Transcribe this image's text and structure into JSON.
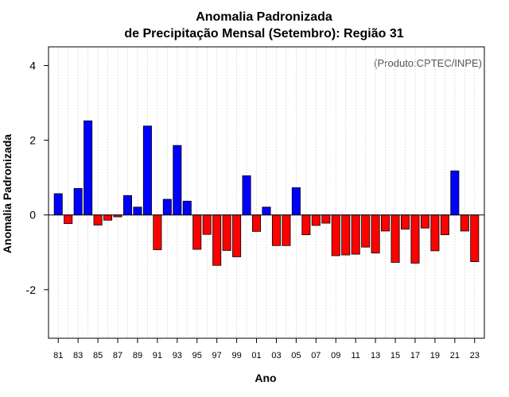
{
  "chart_data": {
    "type": "bar",
    "title": "Anomalia Padronizada",
    "subtitle": "de Precipitação Mensal (Setembro): Região 31",
    "xlabel": "Ano",
    "ylabel": "Anomalia Padronizada",
    "annotation": "(Produto:CPTEC/INPE)",
    "ylim": [
      -3.3,
      4.5
    ],
    "yticks": [
      -2,
      0,
      2,
      4
    ],
    "yticklabels": [
      "-2",
      "0",
      "2",
      "4"
    ],
    "grid": "vertical dotted",
    "colors": {
      "positive": "#0000ff",
      "negative": "#ff0000"
    },
    "tick_labels": [
      "81",
      "83",
      "85",
      "87",
      "89",
      "91",
      "93",
      "95",
      "97",
      "99",
      "01",
      "03",
      "05",
      "07",
      "09",
      "11",
      "13",
      "15",
      "17",
      "19",
      "21",
      "23"
    ],
    "categories": [
      "1981",
      "1982",
      "1983",
      "1984",
      "1985",
      "1986",
      "1987",
      "1988",
      "1989",
      "1990",
      "1991",
      "1992",
      "1993",
      "1994",
      "1995",
      "1996",
      "1997",
      "1998",
      "1999",
      "2000",
      "2001",
      "2002",
      "2003",
      "2004",
      "2005",
      "2006",
      "2007",
      "2008",
      "2009",
      "2010",
      "2011",
      "2012",
      "2013",
      "2014",
      "2015",
      "2016",
      "2017",
      "2018",
      "2019",
      "2020",
      "2021",
      "2022",
      "2023"
    ],
    "values": [
      0.57,
      -0.23,
      0.71,
      2.52,
      -0.27,
      -0.14,
      -0.05,
      0.52,
      0.21,
      2.38,
      -0.93,
      0.42,
      1.86,
      0.37,
      -0.92,
      -0.52,
      -1.35,
      -0.95,
      -1.12,
      1.05,
      -0.44,
      0.21,
      -0.82,
      -0.82,
      0.73,
      -0.53,
      -0.28,
      -0.22,
      -1.09,
      -1.07,
      -1.05,
      -0.86,
      -1.02,
      -0.43,
      -1.27,
      -0.38,
      -1.29,
      -0.35,
      -0.96,
      -0.53,
      1.18,
      -0.43,
      -1.25
    ]
  }
}
